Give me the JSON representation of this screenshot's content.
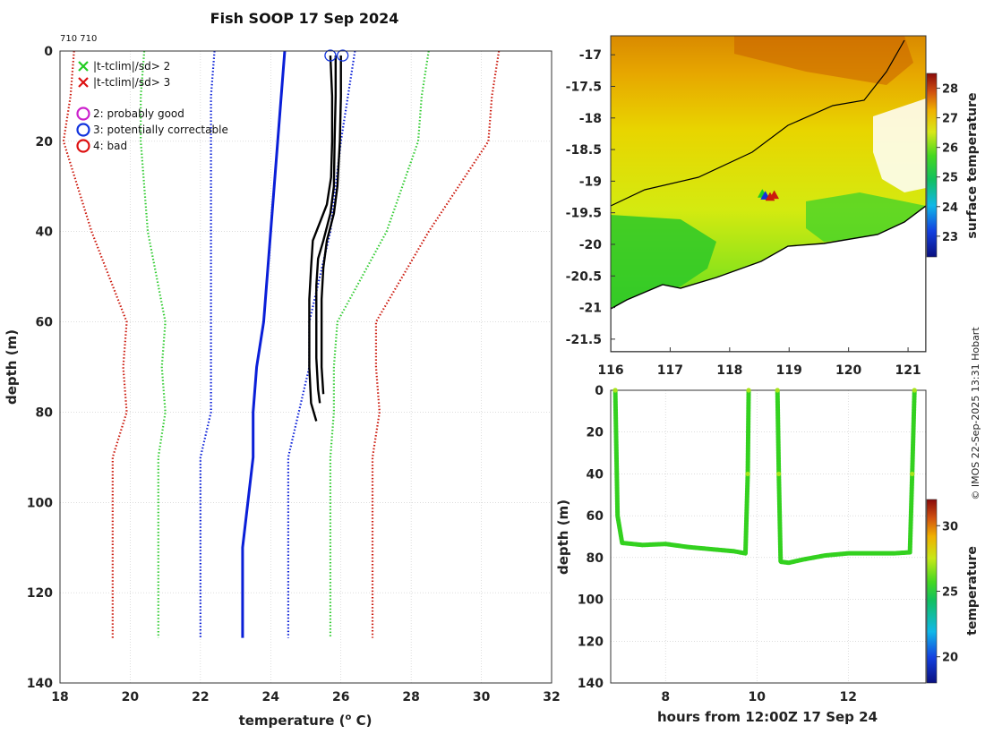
{
  "figure": {
    "title": "Fish SOOP 17 Sep 2024",
    "ids": "710 710",
    "credit": "© IMOS 22-Sep-2025 13:31 Hobart"
  },
  "legend": {
    "items": [
      {
        "marker": "x",
        "color": "#22cc22",
        "label": "|t-tclim|/sd> 2"
      },
      {
        "marker": "x",
        "color": "#dd1111",
        "label": "|t-tclim|/sd> 3"
      },
      {
        "marker": "o",
        "color": "#cc22cc",
        "label": "2: probably good"
      },
      {
        "marker": "o",
        "color": "#1133dd",
        "label": "3: potentially correctable"
      },
      {
        "marker": "o",
        "color": "#dd1111",
        "label": "4: bad"
      }
    ]
  },
  "colors": {
    "profile": "#000000",
    "clim_mean": "#0a1fd8",
    "sd1": "#0a1fd8",
    "sd2": "#33cc33",
    "sd3": "#cc1a0e",
    "track": "#000000"
  },
  "chart_data": [
    {
      "type": "line",
      "id": "profile",
      "title": "Fish SOOP 17 Sep 2024",
      "xlabel": "temperature (°C)",
      "xlabel_text": "temperature (",
      "xlabel_unit": "o",
      "xlabel_end": " C)",
      "ylabel": "depth (m)",
      "xlim": [
        18,
        32
      ],
      "ylim": [
        140,
        0
      ],
      "grid": true,
      "xticks": [
        18,
        20,
        22,
        24,
        26,
        28,
        30,
        32
      ],
      "yticks": [
        0,
        20,
        40,
        60,
        80,
        100,
        120,
        140
      ],
      "series": [
        {
          "name": "clim mean",
          "style": "solid",
          "color": "#0a1fd8",
          "temperature": [
            24.4,
            24.3,
            24.2,
            24.0,
            23.8,
            23.6,
            23.5,
            23.5,
            23.2,
            23.2
          ],
          "depth": [
            0,
            10,
            20,
            40,
            60,
            70,
            80,
            90,
            110,
            130
          ]
        },
        {
          "name": "clim -1sd",
          "style": "dotted",
          "color": "#0a1fd8",
          "temperature": [
            22.4,
            22.3,
            22.3,
            22.3,
            22.3,
            22.3,
            22.3,
            22.0,
            22.0,
            22.0
          ],
          "depth": [
            0,
            10,
            20,
            40,
            60,
            70,
            80,
            90,
            110,
            130
          ]
        },
        {
          "name": "clim +1sd",
          "style": "dotted",
          "color": "#0a1fd8",
          "temperature": [
            26.4,
            26.2,
            26.0,
            25.7,
            25.1,
            25.1,
            24.8,
            24.5,
            24.5,
            24.5
          ],
          "depth": [
            0,
            10,
            20,
            40,
            60,
            70,
            80,
            90,
            110,
            130
          ]
        },
        {
          "name": "clim -2sd",
          "style": "dotted",
          "color": "#33cc33",
          "temperature": [
            20.4,
            20.3,
            20.3,
            20.5,
            21.0,
            20.9,
            21.0,
            20.8,
            20.8,
            20.8
          ],
          "depth": [
            0,
            10,
            20,
            40,
            60,
            70,
            80,
            90,
            110,
            130
          ]
        },
        {
          "name": "clim +2sd",
          "style": "dotted",
          "color": "#33cc33",
          "temperature": [
            28.5,
            28.3,
            28.2,
            27.3,
            25.9,
            25.8,
            25.8,
            25.7,
            25.7,
            25.7
          ],
          "depth": [
            0,
            10,
            20,
            40,
            60,
            70,
            80,
            90,
            110,
            130
          ]
        },
        {
          "name": "clim -3sd",
          "style": "dotted",
          "color": "#cc1a0e",
          "temperature": [
            18.4,
            18.3,
            18.1,
            18.9,
            19.9,
            19.8,
            19.9,
            19.5,
            19.5,
            19.5
          ],
          "depth": [
            0,
            10,
            20,
            40,
            60,
            70,
            80,
            90,
            110,
            130
          ]
        },
        {
          "name": "clim +3sd",
          "style": "dotted",
          "color": "#cc1a0e",
          "temperature": [
            30.5,
            30.3,
            30.2,
            28.5,
            27.0,
            27.0,
            27.1,
            26.9,
            26.9,
            26.9
          ],
          "depth": [
            0,
            10,
            20,
            40,
            60,
            70,
            80,
            90,
            110,
            130
          ]
        },
        {
          "name": "profile 1",
          "style": "solid",
          "color": "#000000",
          "temperature": [
            25.7,
            25.75,
            25.75,
            25.72,
            25.6,
            25.4,
            25.2,
            25.15,
            25.1,
            25.1,
            25.1,
            25.15,
            25.3
          ],
          "depth": [
            1,
            10,
            20,
            28,
            34,
            38,
            42,
            48,
            55,
            62,
            70,
            78,
            82
          ]
        },
        {
          "name": "profile 2",
          "style": "solid",
          "color": "#000000",
          "temperature": [
            25.85,
            25.85,
            25.82,
            25.8,
            25.7,
            25.5,
            25.35,
            25.3,
            25.3,
            25.3,
            25.35,
            25.4
          ],
          "depth": [
            1,
            10,
            20,
            30,
            36,
            42,
            46,
            52,
            60,
            68,
            75,
            78
          ]
        },
        {
          "name": "profile 3",
          "style": "solid",
          "color": "#000000",
          "temperature": [
            26.0,
            26.0,
            25.97,
            25.9,
            25.8,
            25.6,
            25.5,
            25.45,
            25.45,
            25.45,
            25.5
          ],
          "depth": [
            1,
            10,
            20,
            30,
            36,
            42,
            48,
            55,
            62,
            70,
            76
          ]
        }
      ],
      "flags": [
        {
          "type": "circle",
          "color": "#1133dd",
          "temperature": 25.7,
          "depth": 1
        },
        {
          "type": "circle",
          "color": "#1133dd",
          "temperature": 26.05,
          "depth": 1
        }
      ]
    },
    {
      "type": "heatmap",
      "id": "sst_map",
      "xlim": [
        116,
        121.3
      ],
      "ylim": [
        -21.7,
        -16.7
      ],
      "xticks": [
        116,
        117,
        118,
        119,
        120,
        121
      ],
      "yticks": [
        -17,
        -17.5,
        -18,
        -18.5,
        -19,
        -19.5,
        -20,
        -20.5,
        -21,
        -21.5
      ],
      "ytick_labels": [
        "-17",
        "-17.5",
        "-18",
        "-18.5",
        "-19",
        "-19.5",
        "-20",
        "-20.5",
        "-21",
        "-21.5"
      ],
      "colorbar": {
        "label": "surface temperature",
        "range": [
          22.3,
          28.5
        ],
        "ticks": [
          23,
          24,
          25,
          26,
          27,
          28
        ]
      },
      "track_points": [
        {
          "lon": 118.55,
          "lat": -19.2,
          "color": "#22cc22"
        },
        {
          "lon": 118.6,
          "lat": -19.23,
          "color": "#1133dd"
        },
        {
          "lon": 118.68,
          "lat": -19.25,
          "color": "#cc1a0e"
        },
        {
          "lon": 118.75,
          "lat": -19.22,
          "color": "#cc1a0e"
        }
      ]
    },
    {
      "type": "scatter",
      "id": "depth_time",
      "xlabel": "hours from 12:00Z 17 Sep 24",
      "ylabel": "depth (m)",
      "xlim": [
        6.8,
        13.7
      ],
      "ylim": [
        140,
        0
      ],
      "xticks": [
        8,
        10,
        12
      ],
      "yticks": [
        0,
        20,
        40,
        60,
        80,
        100,
        120,
        140
      ],
      "colorbar": {
        "label": "temperature",
        "range": [
          18,
          32
        ],
        "ticks": [
          20,
          25,
          30
        ]
      },
      "drops": [
        {
          "hours": [
            6.9,
            6.95,
            7.05,
            7.5,
            8.0,
            8.5,
            9.0,
            9.5,
            9.75,
            9.8,
            9.82
          ],
          "depth": [
            0,
            60,
            73,
            74,
            73.5,
            75,
            76,
            77,
            78,
            40,
            0
          ]
        },
        {
          "hours": [
            10.45,
            10.48,
            10.52,
            10.7,
            11.0,
            11.5,
            12.0,
            12.5,
            13.0,
            13.35,
            13.4,
            13.45
          ],
          "depth": [
            0,
            40,
            82,
            82.5,
            81,
            79,
            78,
            78,
            78,
            77.5,
            40,
            0
          ]
        }
      ],
      "shallow_temp": 26.5,
      "deep_temp": 25.2
    }
  ]
}
